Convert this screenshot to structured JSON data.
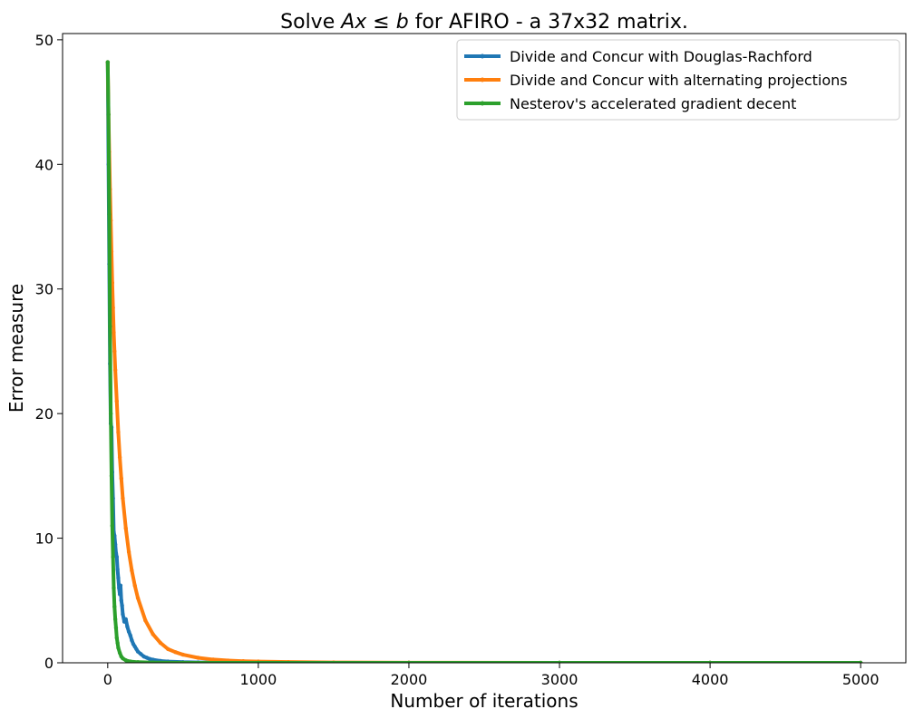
{
  "chart_data": {
    "type": "line",
    "title": {
      "prefix": "Solve ",
      "math_a": "Ax",
      "math_op": " ≤ ",
      "math_b": "b",
      "suffix": " for AFIRO - a 37x32 matrix."
    },
    "xlabel": "Number of iterations",
    "ylabel": "Error measure",
    "xlim": [
      -300,
      5300
    ],
    "ylim": [
      0,
      50.5
    ],
    "x_ticks": [
      0,
      1000,
      2000,
      3000,
      4000,
      5000
    ],
    "x_tick_labels": [
      "0",
      "1000",
      "2000",
      "3000",
      "4000",
      "5000"
    ],
    "y_ticks": [
      0,
      10,
      20,
      30,
      40,
      50
    ],
    "y_tick_labels": [
      "0",
      "10",
      "20",
      "30",
      "40",
      "50"
    ],
    "grid": false,
    "legend_position": "top-right",
    "series": [
      {
        "name": "Divide and Concur with Douglas-Rachford",
        "color": "#1f77b4",
        "x": [
          0,
          5,
          10,
          15,
          20,
          25,
          30,
          35,
          40,
          45,
          50,
          55,
          60,
          65,
          70,
          75,
          80,
          85,
          90,
          95,
          100,
          110,
          120,
          130,
          140,
          150,
          160,
          170,
          180,
          190,
          200,
          220,
          240,
          260,
          280,
          300,
          350,
          400,
          500,
          600,
          800,
          1000,
          1500,
          2000,
          3000,
          4000,
          5000
        ],
        "y": [
          48.2,
          40.0,
          32.0,
          24.0,
          19.2,
          18.9,
          15.3,
          13.2,
          10.5,
          10.2,
          9.5,
          8.8,
          8.5,
          7.5,
          6.8,
          6.0,
          5.5,
          6.2,
          5.0,
          4.6,
          3.9,
          3.3,
          3.5,
          2.9,
          2.5,
          2.2,
          1.8,
          1.5,
          1.3,
          1.1,
          0.9,
          0.7,
          0.5,
          0.4,
          0.3,
          0.25,
          0.15,
          0.1,
          0.05,
          0.03,
          0.01,
          0.0,
          0.0,
          0.0,
          0.0,
          0.0,
          0.0
        ]
      },
      {
        "name": "Divide and Concur with alternating projections",
        "color": "#ff7f0e",
        "x": [
          0,
          5,
          10,
          15,
          20,
          25,
          30,
          35,
          40,
          45,
          50,
          60,
          70,
          80,
          90,
          100,
          120,
          140,
          160,
          180,
          200,
          250,
          300,
          350,
          400,
          450,
          500,
          600,
          700,
          800,
          900,
          1000,
          1200,
          1500,
          2000,
          3000,
          4000,
          5000
        ],
        "y": [
          48.2,
          44.0,
          41.0,
          38.0,
          35.5,
          33.0,
          30.5,
          28.5,
          26.5,
          25.0,
          23.5,
          21.0,
          18.5,
          16.5,
          14.8,
          13.2,
          10.8,
          8.9,
          7.4,
          6.2,
          5.2,
          3.4,
          2.3,
          1.6,
          1.1,
          0.85,
          0.65,
          0.4,
          0.26,
          0.18,
          0.13,
          0.1,
          0.06,
          0.03,
          0.01,
          0.0,
          0.0,
          0.0
        ]
      },
      {
        "name": "Nesterov's accelerated gradient decent",
        "color": "#2ca02c",
        "x": [
          0,
          5,
          10,
          15,
          20,
          25,
          30,
          35,
          40,
          45,
          50,
          55,
          60,
          65,
          70,
          80,
          90,
          100,
          120,
          150,
          200,
          300,
          500,
          1000,
          2000,
          3000,
          4000,
          5000
        ],
        "y": [
          48.2,
          44.0,
          36.0,
          27.0,
          20.0,
          15.0,
          11.0,
          8.5,
          6.0,
          4.5,
          3.5,
          2.8,
          2.0,
          1.6,
          1.2,
          0.8,
          0.5,
          0.35,
          0.2,
          0.1,
          0.05,
          0.02,
          0.0,
          0.0,
          0.0,
          0.0,
          0.0,
          0.0
        ]
      }
    ]
  }
}
